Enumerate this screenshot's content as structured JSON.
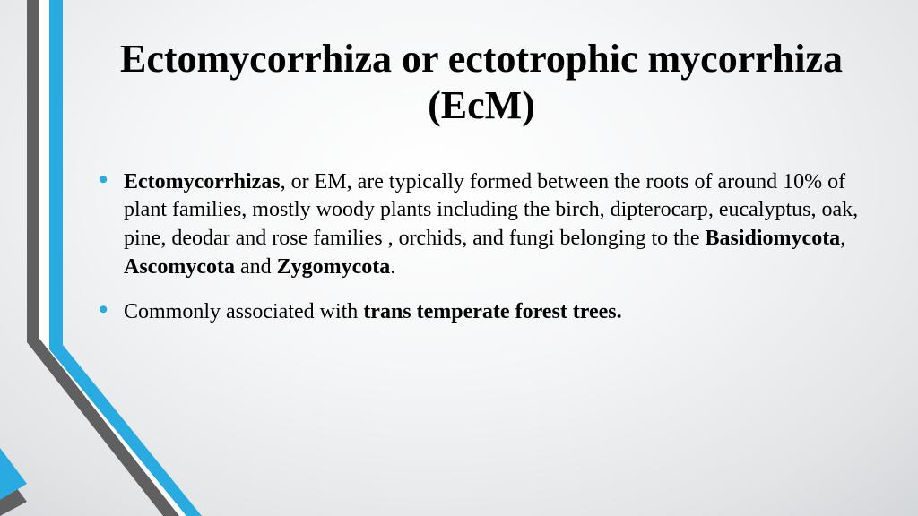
{
  "slide": {
    "title": "Ectomycorrhiza or ectotrophic mycorrhiza (EcM)",
    "bullets": [
      {
        "segments": [
          {
            "text": "Ectomycorrhizas",
            "bold": true
          },
          {
            "text": ", or EM, are typically formed between the roots of around 10% of plant families, mostly woody plants including the birch, dipterocarp, eucalyptus, oak, pine, deodar and rose families , orchids, and fungi belonging to the ",
            "bold": false
          },
          {
            "text": "Basidiomycota",
            "bold": true
          },
          {
            "text": ", ",
            "bold": false
          },
          {
            "text": "Ascomycota",
            "bold": true
          },
          {
            "text": " and ",
            "bold": false
          },
          {
            "text": "Zygomycota",
            "bold": true
          },
          {
            "text": ".",
            "bold": false
          }
        ]
      },
      {
        "segments": [
          {
            "text": "Commonly associated with ",
            "bold": false
          },
          {
            "text": "trans temperate forest trees.",
            "bold": true
          }
        ]
      }
    ]
  },
  "style": {
    "accent_color": "#29abe2",
    "gray_color": "#606060",
    "white_color": "#ffffff",
    "background_colors": [
      "#ffffff",
      "#f5f6f7",
      "#e2e4e6",
      "#c9cccf"
    ],
    "title_fontsize": 44,
    "body_fontsize": 24,
    "font_family": "Times New Roman"
  }
}
